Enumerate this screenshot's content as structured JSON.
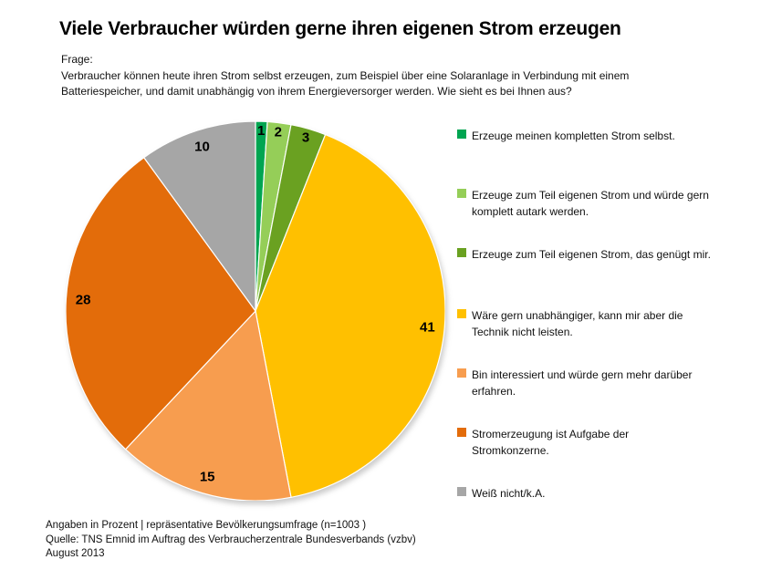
{
  "title": "Viele Verbraucher würden gerne ihren eigenen Strom erzeugen",
  "question": {
    "lines": [
      "Frage:",
      "Verbraucher können heute ihren Strom selbst erzeugen, zum Beispiel über eine Solaranlage in Verbindung mit einem",
      "Batteriespeicher, und damit unabhängig von ihrem Energieversorger werden. Wie sieht es bei Ihnen aus?"
    ]
  },
  "chart_data": {
    "type": "pie",
    "title": "Viele Verbraucher würden gerne ihren eigenen Strom erzeugen",
    "unit": "percent",
    "start_angle": "12 o'clock",
    "direction": "clockwise",
    "total": 100,
    "slices": [
      {
        "label": "Erzeuge meinen kompletten Strom selbst.",
        "value": 1,
        "color": "#00A551"
      },
      {
        "label": "Erzeuge zum Teil eigenen Strom und würde gern komplett autark werden.",
        "value": 2,
        "color": "#95CE58"
      },
      {
        "label": "Erzeuge zum Teil eigenen Strom, das genügt mir.",
        "value": 3,
        "color": "#6AA121"
      },
      {
        "label": "Wäre gern unabhängiger, kann mir aber die Technik nicht leisten.",
        "value": 41,
        "color": "#FFC000"
      },
      {
        "label": "Bin interessiert und würde gern mehr darüber erfahren.",
        "value": 15,
        "color": "#F79D4F"
      },
      {
        "label": "Stromerzeugung ist Aufgabe der Stromkonzerne.",
        "value": 28,
        "color": "#E36C0A"
      },
      {
        "label": "Weiß nicht/k.A.",
        "value": 10,
        "color": "#A6A6A6"
      }
    ]
  },
  "legend": {
    "items": [
      {
        "lines": [
          "Erzeuge meinen kompletten Strom selbst."
        ],
        "color": "#00A551"
      },
      {
        "lines": [
          "Erzeuge zum Teil eigenen Strom und würde gern",
          "komplett autark werden."
        ],
        "color": "#95CE58"
      },
      {
        "lines": [
          "Erzeuge zum Teil eigenen Strom, das genügt mir."
        ],
        "color": "#6AA121"
      },
      {
        "lines": [
          "Wäre gern unabhängiger, kann mir aber die",
          "Technik nicht leisten."
        ],
        "color": "#FFC000"
      },
      {
        "lines": [
          "Bin interessiert und würde gern mehr darüber",
          "erfahren."
        ],
        "color": "#F79D4F"
      },
      {
        "lines": [
          "Stromerzeugung ist Aufgabe der",
          "Stromkonzerne."
        ],
        "color": "#E36C0A"
      },
      {
        "lines": [
          "Weiß nicht/k.A."
        ],
        "color": "#A6A6A6"
      }
    ]
  },
  "footer": {
    "lines": [
      "Angaben in Prozent | repräsentative Bevölkerungsumfrage (n=1003 )",
      "Quelle: TNS Emnid im Auftrag des Verbraucherzentrale Bundesverbands (vzbv)",
      "August 2013"
    ]
  }
}
